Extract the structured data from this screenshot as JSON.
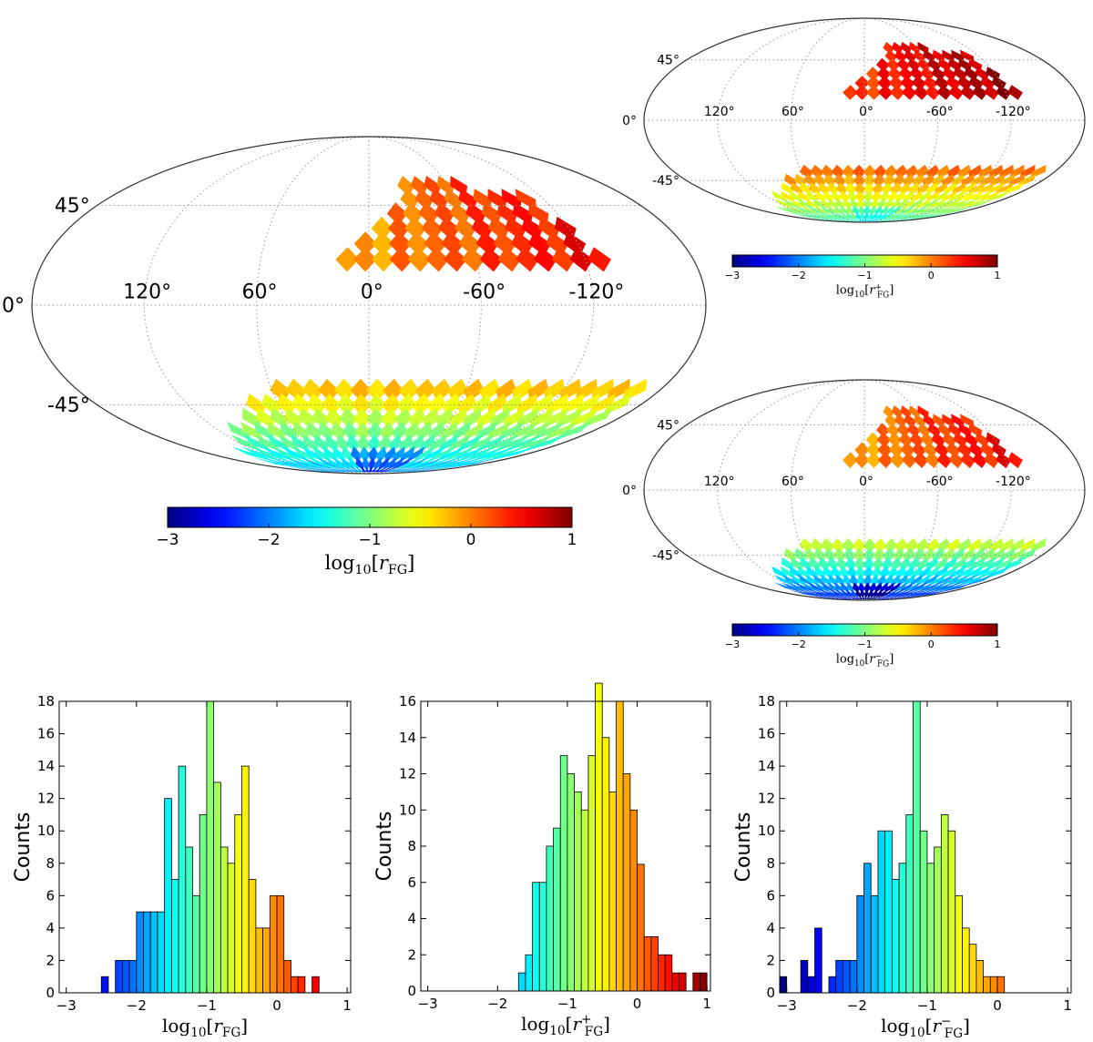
{
  "colormap": "jet",
  "maps": [
    {
      "id": "main",
      "projection": "mollweide",
      "lon_ticks": [
        "120°",
        "60°",
        "0°",
        "-60°",
        "-120°"
      ],
      "lat_ticks": [
        "45°",
        "0°",
        "-45°"
      ],
      "colorbar": {
        "ticks": [
          "−3",
          "−2",
          "−1",
          "0",
          "1"
        ],
        "range": [
          -3,
          1
        ],
        "label_base": "log",
        "label_sub": "10",
        "label_var": "r",
        "label_var_sub": "FG",
        "label_sup": ""
      }
    },
    {
      "id": "plus",
      "projection": "mollweide",
      "lon_ticks": [
        "120°",
        "60°",
        "0°",
        "-60°",
        "-120°"
      ],
      "lat_ticks": [
        "45°",
        "0°",
        "-45°"
      ],
      "colorbar": {
        "ticks": [
          "−3",
          "−2",
          "−1",
          "0",
          "1"
        ],
        "range": [
          -3,
          1
        ],
        "label_base": "log",
        "label_sub": "10",
        "label_var": "r",
        "label_var_sub": "FG",
        "label_sup": "+"
      }
    },
    {
      "id": "minus",
      "projection": "mollweide",
      "lon_ticks": [
        "120°",
        "60°",
        "0°",
        "-60°",
        "-120°"
      ],
      "lat_ticks": [
        "45°",
        "0°",
        "-45°"
      ],
      "colorbar": {
        "ticks": [
          "−3",
          "−2",
          "−1",
          "0",
          "1"
        ],
        "range": [
          -3,
          1
        ],
        "label_base": "log",
        "label_sub": "10",
        "label_var": "r",
        "label_var_sub": "FG",
        "label_sup": "−"
      }
    }
  ],
  "chart_data": [
    {
      "type": "bar",
      "name_hint": "histogram-all",
      "ylabel": "Counts",
      "xlabel_base": "log",
      "xlabel_sub": "10",
      "xlabel_var": "r",
      "xlabel_var_sub": "FG",
      "xlabel_sup": "",
      "xlim": [
        -3.1,
        1.05
      ],
      "ylim": [
        0,
        18
      ],
      "xticks": [
        {
          "v": -3,
          "t": "−3"
        },
        {
          "v": -2,
          "t": "−2"
        },
        {
          "v": -1,
          "t": "−1"
        },
        {
          "v": 0,
          "t": "0"
        },
        {
          "v": 1,
          "t": "1"
        }
      ],
      "yticks": [
        "0",
        "2",
        "4",
        "6",
        "8",
        "10",
        "12",
        "14",
        "16",
        "18"
      ],
      "bin_width": 0.1,
      "bin_starts": [
        -2.5,
        -2.4,
        -2.3,
        -2.2,
        -2.1,
        -2.0,
        -1.9,
        -1.8,
        -1.7,
        -1.6,
        -1.5,
        -1.4,
        -1.3,
        -1.2,
        -1.1,
        -1.0,
        -0.9,
        -0.8,
        -0.7,
        -0.6,
        -0.5,
        -0.4,
        -0.3,
        -0.2,
        -0.1,
        0.0,
        0.1,
        0.2,
        0.3,
        0.4,
        0.5
      ],
      "values": [
        1,
        0,
        2,
        2,
        2,
        5,
        5,
        5,
        5,
        12,
        7,
        14,
        9,
        6,
        11,
        18,
        13,
        9,
        8,
        11,
        14,
        7,
        4,
        4,
        6,
        6,
        2,
        1,
        1,
        0,
        1
      ]
    },
    {
      "type": "bar",
      "name_hint": "histogram-plus",
      "ylabel": "Counts",
      "xlabel_base": "log",
      "xlabel_sub": "10",
      "xlabel_var": "r",
      "xlabel_var_sub": "FG",
      "xlabel_sup": "+",
      "xlim": [
        -3.1,
        1.05
      ],
      "ylim": [
        0,
        16
      ],
      "xticks": [
        {
          "v": -3,
          "t": "−3"
        },
        {
          "v": -2,
          "t": "−2"
        },
        {
          "v": -1,
          "t": "−1"
        },
        {
          "v": 0,
          "t": "0"
        },
        {
          "v": 1,
          "t": "1"
        }
      ],
      "yticks": [
        "0",
        "2",
        "4",
        "6",
        "8",
        "10",
        "12",
        "14",
        "16"
      ],
      "bin_width": 0.1,
      "bin_starts": [
        -1.7,
        -1.6,
        -1.5,
        -1.4,
        -1.3,
        -1.2,
        -1.1,
        -1.0,
        -0.9,
        -0.8,
        -0.7,
        -0.6,
        -0.5,
        -0.4,
        -0.3,
        -0.2,
        -0.1,
        0.0,
        0.1,
        0.2,
        0.3,
        0.4,
        0.5,
        0.6,
        0.7,
        0.8,
        0.9
      ],
      "values": [
        1,
        2,
        6,
        6,
        8,
        9,
        13,
        12,
        11,
        10,
        13,
        17,
        14,
        11,
        16,
        12,
        10,
        7,
        3,
        3,
        2,
        2,
        1,
        1,
        0,
        1,
        1
      ]
    },
    {
      "type": "bar",
      "name_hint": "histogram-minus",
      "ylabel": "Counts",
      "xlabel_base": "log",
      "xlabel_sub": "10",
      "xlabel_var": "r",
      "xlabel_var_sub": "FG",
      "xlabel_sup": "−",
      "xlim": [
        -3.1,
        1.05
      ],
      "ylim": [
        0,
        18
      ],
      "xticks": [
        {
          "v": -3,
          "t": "−3"
        },
        {
          "v": -2,
          "t": "−2"
        },
        {
          "v": -1,
          "t": "−1"
        },
        {
          "v": 0,
          "t": "0"
        },
        {
          "v": 1,
          "t": "1"
        }
      ],
      "yticks": [
        "0",
        "2",
        "4",
        "6",
        "8",
        "10",
        "12",
        "14",
        "16",
        "18"
      ],
      "bin_width": 0.1,
      "bin_starts": [
        -3.1,
        -3.0,
        -2.9,
        -2.8,
        -2.7,
        -2.6,
        -2.5,
        -2.4,
        -2.3,
        -2.2,
        -2.1,
        -2.0,
        -1.9,
        -1.8,
        -1.7,
        -1.6,
        -1.5,
        -1.4,
        -1.3,
        -1.2,
        -1.1,
        -1.0,
        -0.9,
        -0.8,
        -0.7,
        -0.6,
        -0.5,
        -0.4,
        -0.3,
        -0.2,
        -0.1,
        0.0,
        0.1
      ],
      "values": [
        1,
        0,
        0,
        2,
        1,
        4,
        0,
        1,
        2,
        2,
        2,
        6,
        8,
        6,
        10,
        10,
        7,
        8,
        11,
        18,
        10,
        8,
        9,
        11,
        10,
        6,
        4,
        3,
        2,
        1,
        1,
        1,
        0
      ]
    }
  ]
}
